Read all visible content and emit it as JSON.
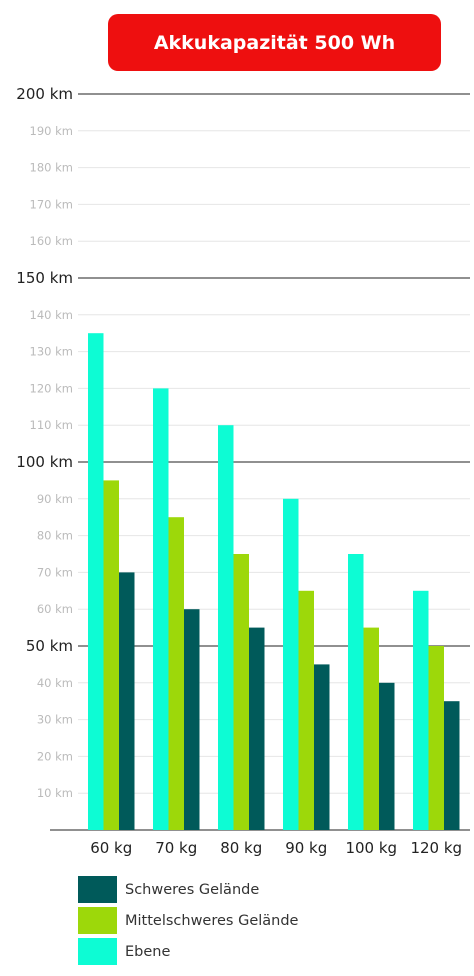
{
  "title": "Akkukapazität 500 Wh",
  "colors": {
    "title_bg": "#ee0f0f",
    "schweres": "#005a5a",
    "mittel": "#9dd80a",
    "ebene": "#0dfcd4",
    "major_grid": "#222222",
    "minor_grid": "#e6e6e6",
    "minor_label": "#bbbbbb",
    "major_label": "#222222"
  },
  "chart_data": {
    "type": "bar",
    "title": "Akkukapazität 500 Wh",
    "xlabel": "",
    "ylabel": "",
    "ylim": [
      0,
      200
    ],
    "grid": true,
    "legend_position": "bottom-left",
    "categories": [
      "60 kg",
      "70 kg",
      "80 kg",
      "90 kg",
      "100 kg",
      "120 kg"
    ],
    "y_ticks": [
      {
        "value": 10,
        "label": "10 km",
        "major": false
      },
      {
        "value": 20,
        "label": "20 km",
        "major": false
      },
      {
        "value": 30,
        "label": "30 km",
        "major": false
      },
      {
        "value": 40,
        "label": "40 km",
        "major": false
      },
      {
        "value": 50,
        "label": "50 km",
        "major": true
      },
      {
        "value": 60,
        "label": "60 km",
        "major": false
      },
      {
        "value": 70,
        "label": "70 km",
        "major": false
      },
      {
        "value": 80,
        "label": "80 km",
        "major": false
      },
      {
        "value": 90,
        "label": "90 km",
        "major": false
      },
      {
        "value": 100,
        "label": "100 km",
        "major": true
      },
      {
        "value": 110,
        "label": "110 km",
        "major": false
      },
      {
        "value": 120,
        "label": "120 km",
        "major": false
      },
      {
        "value": 130,
        "label": "130 km",
        "major": false
      },
      {
        "value": 140,
        "label": "140 km",
        "major": false
      },
      {
        "value": 150,
        "label": "150 km",
        "major": true
      },
      {
        "value": 160,
        "label": "160 km",
        "major": false
      },
      {
        "value": 170,
        "label": "170 km",
        "major": false
      },
      {
        "value": 180,
        "label": "180 km",
        "major": false
      },
      {
        "value": 190,
        "label": "190 km",
        "major": false
      },
      {
        "value": 200,
        "label": "200 km",
        "major": true
      }
    ],
    "series": [
      {
        "name": "Ebene",
        "color": "#0dfcd4",
        "values": [
          135,
          120,
          110,
          90,
          75,
          65
        ]
      },
      {
        "name": "Mittelschweres Gelände",
        "color": "#9dd80a",
        "values": [
          95,
          85,
          75,
          65,
          55,
          50
        ]
      },
      {
        "name": "Schweres Gelände",
        "color": "#005a5a",
        "values": [
          70,
          60,
          55,
          45,
          40,
          35
        ]
      }
    ]
  },
  "legend": [
    {
      "name": "Schweres Gelände",
      "color": "#005a5a"
    },
    {
      "name": "Mittelschweres Gelände",
      "color": "#9dd80a"
    },
    {
      "name": "Ebene",
      "color": "#0dfcd4"
    }
  ]
}
